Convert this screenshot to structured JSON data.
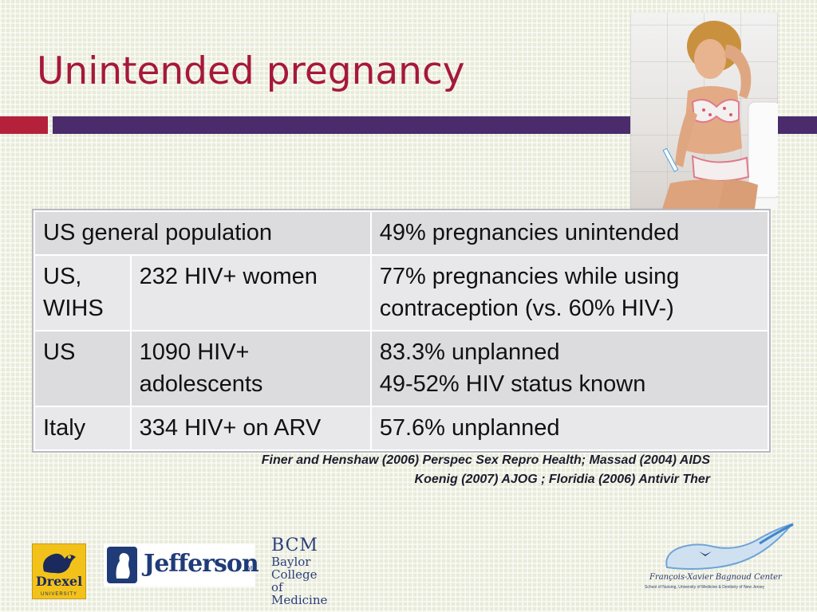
{
  "slide": {
    "title": "Unintended pregnancy"
  },
  "colors": {
    "title": "#a6183a",
    "accent_red": "#b5213a",
    "accent_purple": "#4a2c6d",
    "background": "#e9ebda"
  },
  "table": {
    "rows": [
      {
        "c1": "US general population",
        "c3": "49% pregnancies unintended"
      },
      {
        "c1": "US, WIHS",
        "c2": "232 HIV+ women",
        "c3": [
          "77% pregnancies while using contraception (vs. 60% HIV-)"
        ]
      },
      {
        "c1": "US",
        "c2": "1090 HIV+ adolescents",
        "c3": [
          "83.3% unplanned",
          "49-52% HIV status known"
        ]
      },
      {
        "c1": "Italy",
        "c2": "334 HIV+ on ARV",
        "c3": [
          "57.6% unplanned"
        ]
      }
    ]
  },
  "references": {
    "line1": "Finer and Henshaw  (2006) Perspec Sex Repro Health; Massad (2004) AIDS",
    "line2": "Koenig (2007) AJOG ; Floridia  (2006) Antivir Ther"
  },
  "logos": {
    "drexel_name": "Drexel",
    "drexel_sub": "UNIVERSITY",
    "jefferson_name": "Jefferson",
    "jefferson_tm": "TM",
    "bcm_mark": "BCM",
    "bcm_line1": "Baylor",
    "bcm_line2": "College of",
    "bcm_line3": "Medicine",
    "fxb_name": "François-Xavier Bagnoud Center",
    "fxb_sub": "School of Nursing, University of Medicine & Dentistry of New Jersey"
  },
  "icons": {
    "photo": "woman-pregnancy-test-photo",
    "fxb_logo": "bird-wave-icon",
    "jefferson_logo": "jefferson-bust-icon",
    "drexel_logo": "dragon-icon"
  }
}
